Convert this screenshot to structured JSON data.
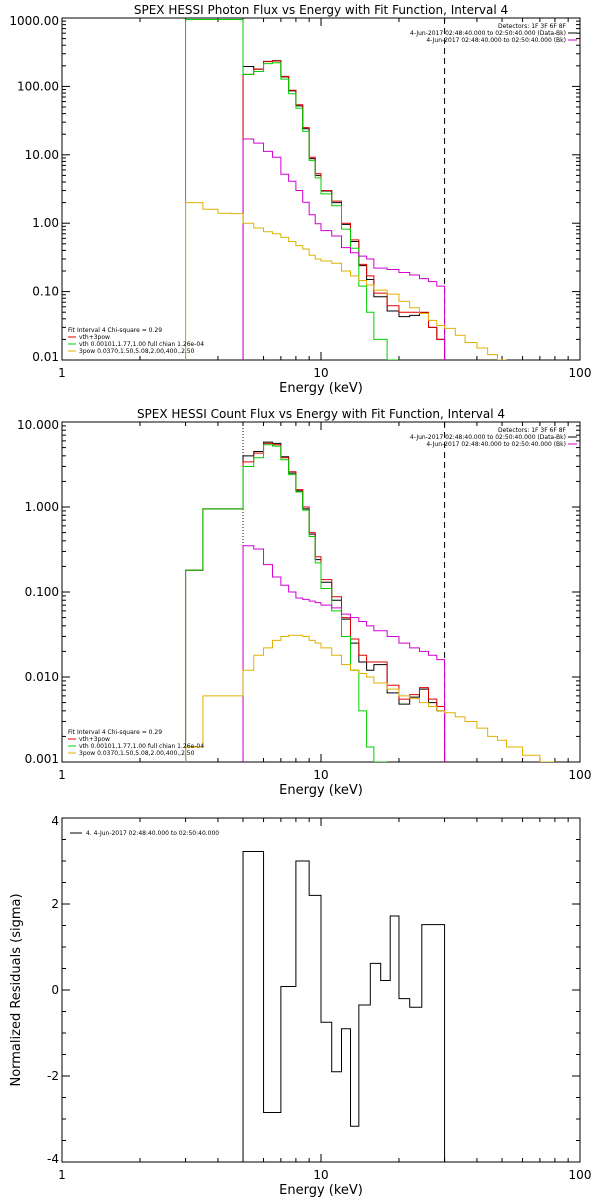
{
  "chart_data": [
    {
      "type": "line",
      "title": "SPEX HESSI Photon Flux vs Energy with Fit Function, Interval 4",
      "xlabel": "Energy (keV)",
      "ylabel": "",
      "xscale": "log",
      "yscale": "log",
      "xlim": [
        1,
        100
      ],
      "ylim": [
        0.01,
        1000
      ],
      "xticks": [
        "1",
        "10",
        "100"
      ],
      "yticks": [
        "0.01",
        "0.10",
        "1.00",
        "10.00",
        "100.00",
        "1000.00"
      ],
      "ytick_values": [
        0.01,
        0.1,
        1,
        10,
        100,
        1000
      ],
      "fit_range": [
        5,
        30
      ],
      "header_lines": [
        {
          "text": "Detectors: 1F 3F 6F 8F",
          "color": ""
        },
        {
          "text": "4-Jun-2017 02:48:40.000 to 02:50:40.000 (Data-Bk)",
          "color": ""
        },
        {
          "text": "4-Jun-2017 02:48:40.000 to 02:50:40.000 (Bk)",
          "color": "#d000d0"
        }
      ],
      "legend": [
        {
          "text": "Fit Interval 4   Chi-square = 0.29",
          "color": ""
        },
        {
          "text": "vth+3pow",
          "color": "#e00000"
        },
        {
          "text": "vth 0.00101,1.77,1.00  full chian 1.26e-04",
          "color": "#00d000"
        },
        {
          "text": "3pow 0.0370,1.50,5.08,2.00,400.,2.50",
          "color": "#e0b000"
        }
      ],
      "edges": [
        3.0,
        3.5,
        4.0,
        4.5,
        5.0,
        5.5,
        6.0,
        6.5,
        7.0,
        7.5,
        8.0,
        8.5,
        9.0,
        9.5,
        10.0,
        11.0,
        12.0,
        13.0,
        14.0,
        15.0,
        16.0,
        18.0,
        20.0,
        22.0,
        24.0,
        26.0,
        28.0,
        30.0,
        33.0,
        36.0,
        40.0,
        44.0,
        48.0,
        52.0
      ],
      "series": [
        {
          "name": "",
          "color": "#000000",
          "start": 4,
          "values": [
            195,
            178,
            232,
            238,
            138,
            86,
            52,
            24,
            8.8,
            5.0,
            2.95,
            2.0,
            0.96,
            0.54,
            0.24,
            0.15,
            0.084,
            0.052,
            0.043,
            0.045,
            0.049,
            0.03,
            0.02
          ]
        },
        {
          "name": "",
          "color": "#e00000",
          "start": 4,
          "values": [
            150,
            180,
            230,
            235,
            140,
            88,
            54,
            25,
            9.2,
            5.3,
            3.0,
            2.1,
            1.0,
            0.57,
            0.25,
            0.17,
            0.095,
            0.062,
            0.05,
            0.05,
            0.05,
            0.03,
            0.02
          ]
        },
        {
          "name": "",
          "color": "#00d000",
          "start": 0,
          "values": [
            950,
            950,
            950,
            950,
            150,
            165,
            215,
            222,
            128,
            78,
            48,
            22,
            8.3,
            4.6,
            2.68,
            1.8,
            0.82,
            0.43,
            0.12,
            0.05,
            0.02,
            0.01
          ]
        },
        {
          "name": "",
          "color": "#d000d0",
          "start": 4,
          "values": [
            17,
            14.8,
            11.2,
            9.2,
            5.2,
            4.1,
            3.0,
            2.02,
            1.33,
            0.98,
            0.78,
            0.65,
            0.44,
            0.37,
            0.33,
            0.3,
            0.22,
            0.21,
            0.19,
            0.175,
            0.155,
            0.14,
            0.12
          ]
        },
        {
          "name": "",
          "color": "#e0b000",
          "start": 0,
          "values": [
            2.0,
            1.6,
            1.4,
            1.38,
            1.0,
            0.85,
            0.75,
            0.7,
            0.62,
            0.54,
            0.47,
            0.42,
            0.34,
            0.3,
            0.28,
            0.26,
            0.2,
            0.17,
            0.145,
            0.125,
            0.105,
            0.092,
            0.072,
            0.058,
            0.048,
            0.038,
            0.032,
            0.029,
            0.023,
            0.018,
            0.015,
            0.012,
            0.01
          ]
        }
      ]
    },
    {
      "type": "line",
      "title": "SPEX HESSI Count Flux vs Energy with Fit Function, Interval 4",
      "xlabel": "Energy (keV)",
      "ylabel": "",
      "xscale": "log",
      "yscale": "log",
      "xlim": [
        1,
        100
      ],
      "ylim": [
        0.001,
        10
      ],
      "xticks": [
        "1",
        "10",
        "100"
      ],
      "yticks": [
        "0.001",
        "0.010",
        "0.100",
        "1.000",
        "10.000"
      ],
      "ytick_values": [
        0.001,
        0.01,
        0.1,
        1,
        10
      ],
      "fit_range": [
        5,
        30
      ],
      "header_lines": [
        {
          "text": "Detectors: 1F 3F 6F 8F",
          "color": ""
        },
        {
          "text": "4-Jun-2017 02:48:40.000 to 02:50:40.000 (Data-Bk)",
          "color": ""
        },
        {
          "text": "4-Jun-2017 02:48:40.000 to 02:50:40.000 (Bk)",
          "color": "#d000d0"
        }
      ],
      "legend": [
        {
          "text": "Fit Interval 4   Chi-square = 0.29",
          "color": ""
        },
        {
          "text": "vth+3pow",
          "color": "#e00000"
        },
        {
          "text": "vth 0.00101,1.77,1.00  full chian 1.26e-04",
          "color": "#00d000"
        },
        {
          "text": "3pow 0.0370,1.50,5.08,2.00,400.,2.50",
          "color": "#e0b000"
        }
      ],
      "edges": [
        3.0,
        3.5,
        4.0,
        4.5,
        5.0,
        5.5,
        6.0,
        6.5,
        7.0,
        7.5,
        8.0,
        8.5,
        9.0,
        9.5,
        10.0,
        11.0,
        12.0,
        13.0,
        14.0,
        15.0,
        16.0,
        18.0,
        20.0,
        22.0,
        24.0,
        26.0,
        28.0,
        30.0,
        33.0,
        36.0,
        40.0,
        44.0,
        48.0,
        52.0,
        60.0,
        70.0,
        80.0
      ],
      "series": [
        {
          "name": "",
          "color": "#000000",
          "start": 0,
          "values": [
            0.18,
            0.95,
            0.95,
            0.95,
            4.0,
            4.5,
            5.8,
            5.6,
            3.9,
            2.5,
            1.55,
            0.95,
            0.48,
            0.24,
            0.13,
            0.08,
            0.048,
            0.025,
            0.015,
            0.012,
            0.014,
            0.0065,
            0.0048,
            0.0058,
            0.0072,
            0.005,
            0.004
          ]
        },
        {
          "name": "",
          "color": "#e00000",
          "start": 0,
          "values": [
            0.18,
            0.95,
            0.95,
            0.95,
            3.4,
            4.3,
            5.6,
            5.4,
            3.8,
            2.6,
            1.6,
            1.0,
            0.5,
            0.26,
            0.14,
            0.088,
            0.05,
            0.028,
            0.018,
            0.015,
            0.015,
            0.008,
            0.0055,
            0.0062,
            0.0075,
            0.0055,
            0.0045
          ]
        },
        {
          "name": "",
          "color": "#00d000",
          "start": 0,
          "values": [
            0.18,
            0.95,
            0.95,
            0.95,
            3.0,
            3.8,
            5.4,
            5.2,
            3.6,
            2.4,
            1.5,
            0.92,
            0.45,
            0.22,
            0.11,
            0.06,
            0.03,
            0.012,
            0.004,
            0.0015,
            0.001
          ]
        },
        {
          "name": "",
          "color": "#d000d0",
          "start": 4,
          "values": [
            0.35,
            0.32,
            0.21,
            0.15,
            0.12,
            0.1,
            0.085,
            0.082,
            0.078,
            0.075,
            0.07,
            0.065,
            0.055,
            0.05,
            0.045,
            0.04,
            0.035,
            0.03,
            0.025,
            0.022,
            0.02,
            0.018,
            0.016
          ]
        },
        {
          "name": "",
          "color": "#e0b000",
          "start": 0,
          "values": [
            0.0015,
            0.006,
            0.006,
            0.006,
            0.012,
            0.018,
            0.022,
            0.027,
            0.03,
            0.031,
            0.031,
            0.03,
            0.027,
            0.025,
            0.022,
            0.018,
            0.014,
            0.012,
            0.011,
            0.01,
            0.0085,
            0.0072,
            0.006,
            0.0056,
            0.005,
            0.0045,
            0.004,
            0.0038,
            0.0034,
            0.003,
            0.0025,
            0.002,
            0.0018,
            0.0015,
            0.0012,
            0.001
          ]
        }
      ]
    },
    {
      "type": "line",
      "title": "",
      "xlabel": "Energy (keV)",
      "ylabel": "Normalized Residuals (sigma)",
      "xscale": "log",
      "yscale": "linear",
      "xlim": [
        1,
        100
      ],
      "ylim": [
        -4,
        4
      ],
      "xticks": [
        "1",
        "10",
        "100"
      ],
      "yticks": [
        "-4",
        "-2",
        "0",
        "2",
        "4"
      ],
      "ytick_values": [
        -4,
        -2,
        0,
        2,
        4
      ],
      "legend": [
        {
          "text": "4.  4-Jun-2017 02:48:40.000 to 02:50:40.000",
          "color": ""
        }
      ],
      "edges": [
        5.0,
        6.0,
        7.0,
        8.0,
        9.0,
        10.0,
        11.0,
        12.0,
        13.0,
        14.0,
        15.5,
        17.0,
        18.5,
        20.0,
        22.0,
        24.5,
        27.0,
        30.0
      ],
      "series": [
        {
          "name": "",
          "color": "#000000",
          "start": 0,
          "values": [
            3.22,
            -2.85,
            0.08,
            3.0,
            2.2,
            -0.75,
            -1.9,
            -0.9,
            -3.17,
            -0.35,
            0.62,
            0.22,
            1.72,
            -0.2,
            -0.4,
            1.52,
            1.52
          ]
        }
      ]
    }
  ]
}
